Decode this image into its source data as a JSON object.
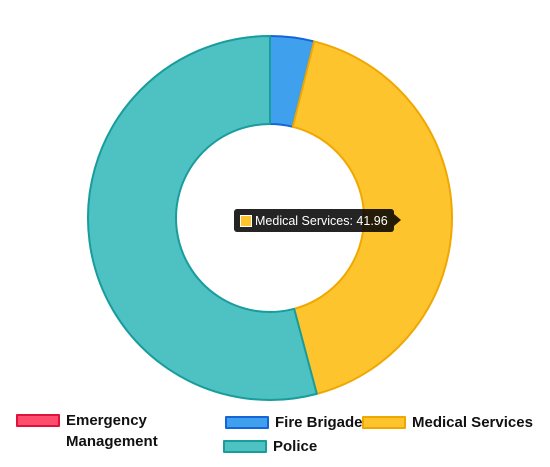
{
  "chart_data": {
    "type": "pie",
    "donut": true,
    "categories": [
      "Emergency Management",
      "Fire Brigade",
      "Medical Services",
      "Police"
    ],
    "values": [
      0,
      3.9,
      41.96,
      54.14
    ],
    "colors": {
      "Emergency Management": {
        "fill": "#ff4d6d",
        "stroke": "#e0113c"
      },
      "Fire Brigade": {
        "fill": "#3fa0ee",
        "stroke": "#1565d8"
      },
      "Medical Services": {
        "fill": "#fec42e",
        "stroke": "#f0a800"
      },
      "Police": {
        "fill": "#4ec1c2",
        "stroke": "#199c9c"
      }
    },
    "legend": {
      "position": "bottom",
      "items": [
        {
          "label": "Emergency Management",
          "line1": "Emergency",
          "line2": "Management"
        },
        {
          "label": "Fire Brigade"
        },
        {
          "label": "Medical Services"
        },
        {
          "label": "Police"
        }
      ]
    },
    "tooltip": {
      "category": "Medical Services",
      "text": "Medical Services: 41.96"
    }
  }
}
